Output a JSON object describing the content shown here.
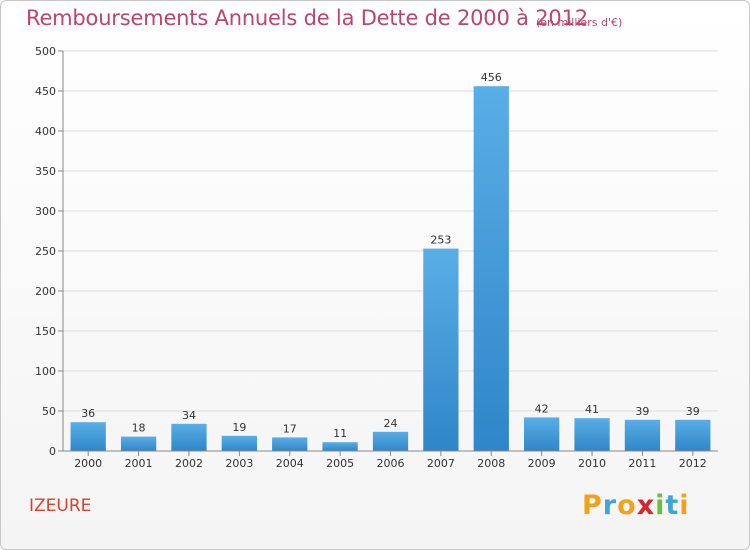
{
  "chart_data": {
    "type": "bar",
    "title": "Remboursements Annuels de la Dette de 2000 à 2012",
    "subtitle": "(en milliers d'€)",
    "categories": [
      "2000",
      "2001",
      "2002",
      "2003",
      "2004",
      "2005",
      "2006",
      "2007",
      "2008",
      "2009",
      "2010",
      "2011",
      "2012"
    ],
    "values": [
      36,
      18,
      34,
      19,
      17,
      11,
      24,
      253,
      456,
      42,
      41,
      39,
      39
    ],
    "ylim": [
      0,
      500
    ],
    "yticks": [
      0,
      50,
      100,
      150,
      200,
      250,
      300,
      350,
      400,
      450,
      500
    ],
    "grid": true,
    "xlabel": "",
    "ylabel": ""
  },
  "town": "IZEURE",
  "logo": {
    "text": "Proxiti",
    "letters": [
      "P",
      "r",
      "o",
      "x",
      "i",
      "t",
      "i"
    ],
    "colors": [
      "#f0a21c",
      "#3fa4d8",
      "#f0a21c",
      "#d6262a",
      "#6cbf3a",
      "#3fa4d8",
      "#f0a21c"
    ]
  },
  "colors": {
    "title": "#c0436b",
    "town": "#d9412a",
    "bar_top": "#5aaee6",
    "bar_bottom": "#2f86c8"
  }
}
